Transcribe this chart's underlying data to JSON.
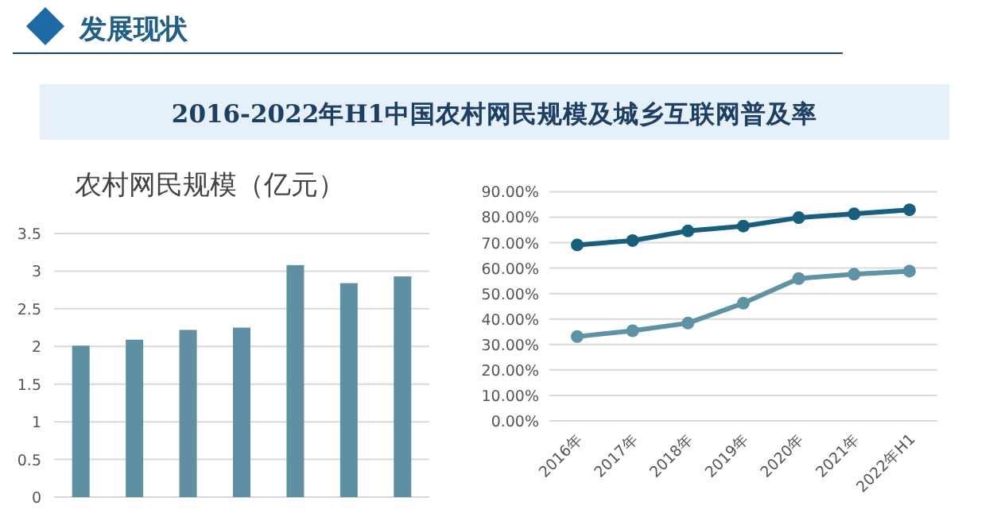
{
  "chart_data": [
    {
      "type": "bar",
      "title": "农村网民规模（亿元）",
      "annotations": [
        "发展现状",
        "2016-2022年H1中国农村网民规模及城乡互联网普及率"
      ],
      "categories": [
        null,
        null,
        null,
        null,
        null,
        null,
        null
      ],
      "values": [
        2.01,
        2.09,
        2.22,
        2.25,
        3.08,
        2.84,
        2.93
      ],
      "color": "#5f8fa3",
      "ylim": [
        0,
        3.5
      ],
      "yticks": [
        0,
        0.5,
        1,
        1.5,
        2,
        2.5,
        3,
        3.5
      ],
      "grid": "y"
    },
    {
      "type": "line",
      "categories": [
        "2016年",
        "2017年",
        "2018年",
        "2019年",
        "2020年",
        "2021年",
        "2022年H1"
      ],
      "series": [
        {
          "color": "#17607d",
          "values": [
            69.1,
            70.8,
            74.6,
            76.5,
            79.8,
            81.3,
            82.9
          ]
        },
        {
          "color": "#5e93a6",
          "values": [
            33.1,
            35.4,
            38.4,
            46.2,
            55.9,
            57.6,
            58.8
          ]
        }
      ],
      "ylim": [
        0,
        90
      ],
      "yticks": [
        {
          "value": 0,
          "label": "0.00%"
        },
        {
          "value": 10,
          "label": "10.00%"
        },
        {
          "value": 20,
          "label": "20.00%"
        },
        {
          "value": 30,
          "label": "30.00%"
        },
        {
          "value": 40,
          "label": "40.00%"
        },
        {
          "value": 50,
          "label": "50.00%"
        },
        {
          "value": 60,
          "label": "60.00%"
        },
        {
          "value": 70,
          "label": "70.00%"
        },
        {
          "value": 80,
          "label": "80.00%"
        },
        {
          "value": 90,
          "label": "90.00%"
        }
      ],
      "grid": "y",
      "marker": "circle"
    }
  ]
}
